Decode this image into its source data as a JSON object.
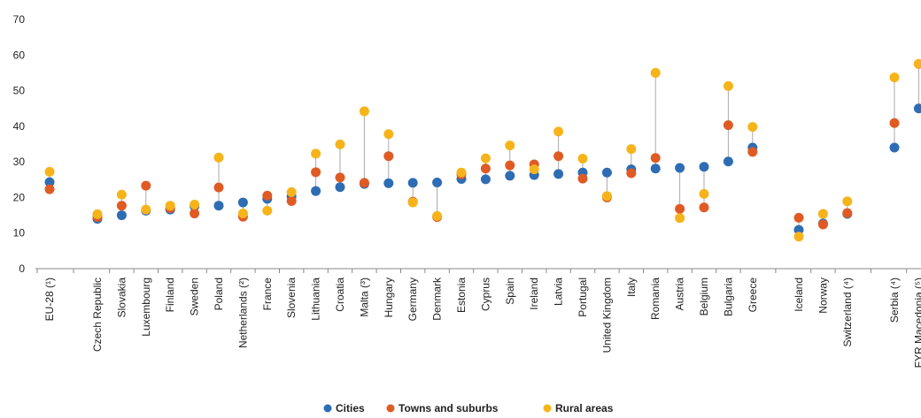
{
  "chart_data": {
    "type": "scatter",
    "ylim": [
      0,
      70
    ],
    "yticks": [
      0,
      10,
      20,
      30,
      40,
      50,
      60,
      70
    ],
    "grid": false,
    "legend_placement": "bottom-center",
    "categories": [
      "EU-28 (¹)",
      "Czech Republic",
      "Slovakia",
      "Luxembourg",
      "Finland",
      "Sweden",
      "Poland",
      "Netherlands (²)",
      "France",
      "Slovenia",
      "Lithuania",
      "Croatia",
      "Malta (³)",
      "Hungary",
      "Germany",
      "Denmark",
      "Estonia",
      "Cyprus",
      "Spain",
      "Ireland",
      "Latvia",
      "Portugal",
      "United Kingdom",
      "Italy",
      "Romania",
      "Austria",
      "Belgium",
      "Bulgaria",
      "Greece",
      "Iceland",
      "Norway",
      "Switzerland (⁴)",
      "Serbia (⁴)",
      "FYR Macedonia (⁵)"
    ],
    "series": [
      {
        "name": "Cities",
        "color": "#2e6db4",
        "values": [
          24.3,
          14.0,
          15.0,
          16.3,
          16.6,
          17.5,
          17.7,
          18.6,
          19.6,
          20.3,
          21.8,
          22.9,
          23.8,
          24.0,
          24.1,
          24.2,
          25.2,
          25.1,
          26.1,
          26.3,
          26.6,
          27.0,
          27.0,
          27.9,
          28.1,
          28.3,
          28.6,
          30.1,
          34.0,
          10.9,
          12.7,
          15.4,
          34.0,
          45.0
        ]
      },
      {
        "name": "Towns and suburbs",
        "color": "#e05a24",
        "values": [
          22.3,
          14.5,
          17.7,
          23.3,
          17.0,
          15.5,
          22.8,
          14.6,
          20.5,
          19.0,
          27.1,
          25.6,
          24.1,
          31.6,
          18.8,
          14.5,
          26.5,
          28.1,
          29.0,
          29.3,
          31.6,
          25.3,
          20.0,
          26.8,
          31.1,
          16.8,
          17.2,
          40.3,
          32.8,
          14.3,
          12.4,
          15.6,
          40.9,
          57.5
        ]
      },
      {
        "name": "Rural areas",
        "color": "#f6b41a",
        "values": [
          27.2,
          15.3,
          20.8,
          16.6,
          17.7,
          18.0,
          31.2,
          15.5,
          16.3,
          21.5,
          32.3,
          34.9,
          44.2,
          37.8,
          18.6,
          14.8,
          27.0,
          31.0,
          34.6,
          27.9,
          38.5,
          30.9,
          20.4,
          33.6,
          55.0,
          14.2,
          21.0,
          51.3,
          39.8,
          9.0,
          15.4,
          18.9,
          53.7,
          57.5
        ]
      }
    ],
    "range_line_color": "#aaaaaa"
  }
}
